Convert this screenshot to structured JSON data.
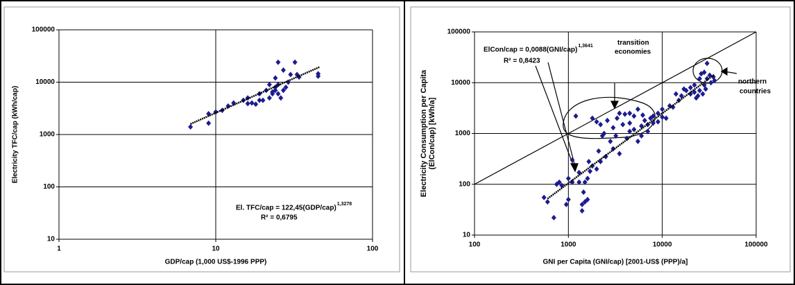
{
  "chart_data": [
    {
      "type": "scatter",
      "xscale": "log",
      "yscale": "log",
      "x_label": "GDP/cap (1,000 US$-1996 PPP)",
      "y_label": [
        "Electricity TFC/cap (kWh/cap)"
      ],
      "xlim": [
        1,
        100
      ],
      "xticks": [
        1,
        10,
        100
      ],
      "ylim": [
        10,
        100000
      ],
      "yticks": [
        10,
        100,
        1000,
        10000,
        100000
      ],
      "grid": true,
      "color": "#1c1c8f",
      "x": [
        6.9,
        9,
        9,
        10,
        11,
        12,
        13,
        15,
        16,
        16,
        17,
        18,
        19,
        19,
        20,
        21,
        22,
        22,
        23,
        23,
        24,
        24,
        24,
        25,
        25,
        25,
        26,
        27,
        27,
        28,
        29,
        30,
        32,
        33,
        34,
        45,
        45
      ],
      "values": [
        1400,
        1650,
        2500,
        2700,
        2900,
        3500,
        4000,
        4500,
        5000,
        3900,
        4000,
        3800,
        4500,
        6000,
        4500,
        7000,
        5000,
        9000,
        6000,
        6500,
        7000,
        8000,
        12000,
        6000,
        9000,
        24000,
        5000,
        7000,
        17000,
        8000,
        10000,
        14000,
        24000,
        14000,
        12500,
        13000,
        14500
      ],
      "trendline": {
        "x": [
          6.9,
          46
        ],
        "values": [
          1590,
          19500
        ],
        "color": "#000000"
      },
      "annotations": [
        {
          "text": "El. TFC/cap = 122,45(GDP/cap)",
          "exponent": "1,3278"
        },
        {
          "text": "R² = 0,6795"
        }
      ]
    },
    {
      "type": "scatter",
      "xscale": "log",
      "yscale": "log",
      "x_label": "GNI per Capita (GNI/cap) [2001-US$ (PPP)/a]",
      "y_label": [
        "Electricity Consumption per Capita",
        "(ElCon/cap) [kWh/a]"
      ],
      "xlim": [
        100,
        100000
      ],
      "xticks": [
        100,
        1000,
        10000,
        100000
      ],
      "ylim": [
        10,
        100000
      ],
      "yticks": [
        10,
        100,
        1000,
        10000,
        100000
      ],
      "grid": true,
      "color": "#1c1c8f",
      "x": [
        550,
        600,
        700,
        750,
        800,
        850,
        950,
        1000,
        1000,
        1100,
        1300,
        1400,
        1400,
        1450,
        1500,
        1500,
        1600,
        1600,
        1700,
        1800,
        1200,
        2000,
        2200,
        2400,
        2500,
        2200,
        2000,
        2800,
        3000,
        3000,
        3500,
        3200,
        3500,
        4000,
        4200,
        4500,
        4500,
        5000,
        5000,
        5500,
        5500,
        6000,
        6000,
        6500,
        7000,
        7000,
        7500,
        8000,
        8000,
        9000,
        9000,
        10000,
        10000,
        11000,
        12000,
        13000,
        14000,
        15000,
        16000,
        17000,
        18000,
        20000,
        20000,
        22000,
        22000,
        23000,
        24000,
        25000,
        25000,
        26000,
        27000,
        28000,
        28000,
        29000,
        30000,
        30000,
        32000,
        33000,
        35000,
        36000,
        1800,
        2600,
        3800,
        2300,
        3300,
        1100,
        1300,
        1650,
        2100,
        4500,
        6200
      ],
      "values": [
        55,
        45,
        22,
        100,
        110,
        95,
        40,
        50,
        130,
        110,
        110,
        30,
        40,
        70,
        110,
        45,
        50,
        130,
        180,
        230,
        2200,
        1700,
        1500,
        1000,
        350,
        280,
        200,
        700,
        500,
        1300,
        400,
        900,
        2500,
        2400,
        800,
        2500,
        1100,
        1200,
        2200,
        3000,
        700,
        1400,
        900,
        1800,
        1500,
        1100,
        2000,
        1600,
        2200,
        1700,
        2500,
        2100,
        3000,
        2000,
        3500,
        3300,
        6000,
        4500,
        5500,
        7500,
        7000,
        8000,
        6000,
        9000,
        6500,
        5000,
        5500,
        7000,
        12000,
        15000,
        6000,
        9000,
        16000,
        7500,
        24000,
        12000,
        14000,
        10000,
        13000,
        11000,
        2000,
        1800,
        1500,
        900,
        2000,
        300,
        170,
        280,
        450,
        1600,
        2300
      ],
      "trendline": {
        "x": [
          600,
          36000
        ],
        "values": [
          52,
          14500
        ],
        "color": "#000000"
      },
      "reference_line": {
        "x": [
          100,
          100000
        ],
        "values": [
          100,
          100000
        ],
        "color": "#000000"
      },
      "annotations": [
        {
          "text": "ElCon/cap = 0,0088(GNI/cap)",
          "exponent": "1,3641"
        },
        {
          "text": "R² = 0,8423"
        },
        {
          "text": "transition"
        },
        {
          "text": "economies"
        },
        {
          "text": "northern"
        },
        {
          "text": "countries"
        }
      ]
    }
  ]
}
